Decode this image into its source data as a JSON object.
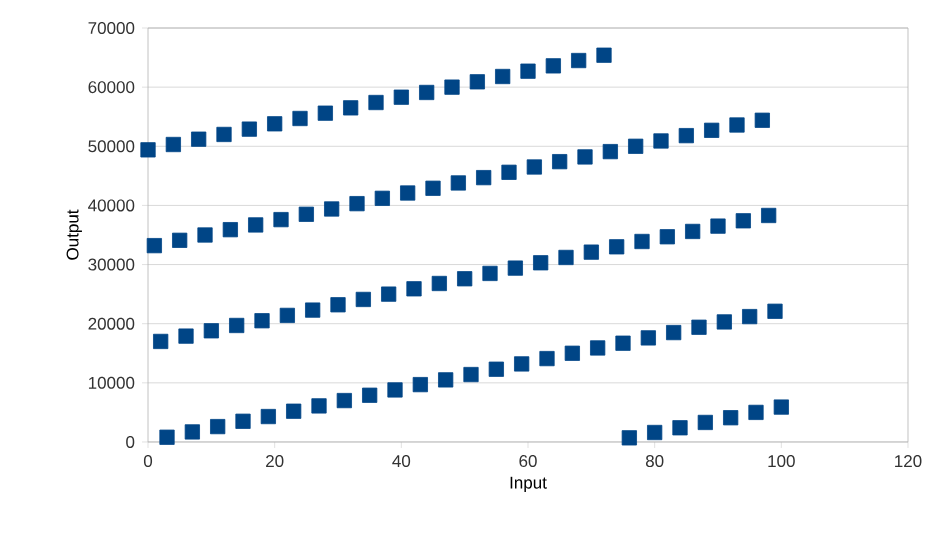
{
  "chart_data": {
    "type": "scatter",
    "xlabel": "Input",
    "ylabel": "Output",
    "x": [
      0,
      1,
      2,
      3,
      4,
      5,
      6,
      7,
      8,
      9,
      10,
      11,
      12,
      13,
      14,
      15,
      16,
      17,
      18,
      19,
      20,
      21,
      22,
      23,
      24,
      25,
      26,
      27,
      28,
      29,
      30,
      31,
      32,
      33,
      34,
      35,
      36,
      37,
      38,
      39,
      40,
      41,
      42,
      43,
      44,
      45,
      46,
      47,
      48,
      49,
      50,
      51,
      52,
      53,
      54,
      55,
      56,
      57,
      58,
      59,
      60,
      61,
      62,
      63,
      64,
      65,
      66,
      67,
      68,
      69,
      70,
      71,
      72,
      73,
      74,
      75,
      76,
      77,
      78,
      79,
      80,
      81,
      82,
      83,
      84,
      85,
      86,
      87,
      88,
      89,
      90,
      91,
      92,
      93,
      94,
      95,
      96,
      97,
      98,
      99,
      100
    ],
    "values": [
      49400,
      33200,
      17000,
      800,
      50300,
      34100,
      17900,
      1700,
      51200,
      35000,
      18800,
      2600,
      52000,
      35900,
      19700,
      3500,
      52900,
      36700,
      20500,
      4300,
      53800,
      37600,
      21400,
      5200,
      54700,
      38500,
      22300,
      6100,
      55600,
      39400,
      23200,
      7000,
      56500,
      40300,
      24100,
      7900,
      57400,
      41200,
      25000,
      8800,
      58300,
      42100,
      25900,
      9700,
      59100,
      42900,
      26800,
      10500,
      60000,
      43800,
      27600,
      11400,
      60900,
      44700,
      28500,
      12300,
      61800,
      45600,
      29400,
      13200,
      62700,
      46500,
      30300,
      14100,
      63600,
      47400,
      31200,
      15000,
      64500,
      48200,
      32100,
      15900,
      65400,
      49100,
      33000,
      16700,
      700,
      50000,
      33900,
      17600,
      1600,
      50900,
      34700,
      18500,
      2400,
      51800,
      35600,
      19400,
      3300,
      52700,
      36500,
      20300,
      4100,
      53600,
      37400,
      21200,
      5000,
      54400,
      38300,
      22100,
      5900
    ],
    "color": "#004586",
    "marker": "square",
    "grid": "y",
    "xlim": [
      0,
      120
    ],
    "xticks": [
      0,
      20,
      40,
      60,
      80,
      100,
      120
    ],
    "ylim": [
      0,
      70000
    ],
    "yticks": [
      0,
      10000,
      20000,
      30000,
      40000,
      50000,
      60000,
      70000
    ]
  }
}
